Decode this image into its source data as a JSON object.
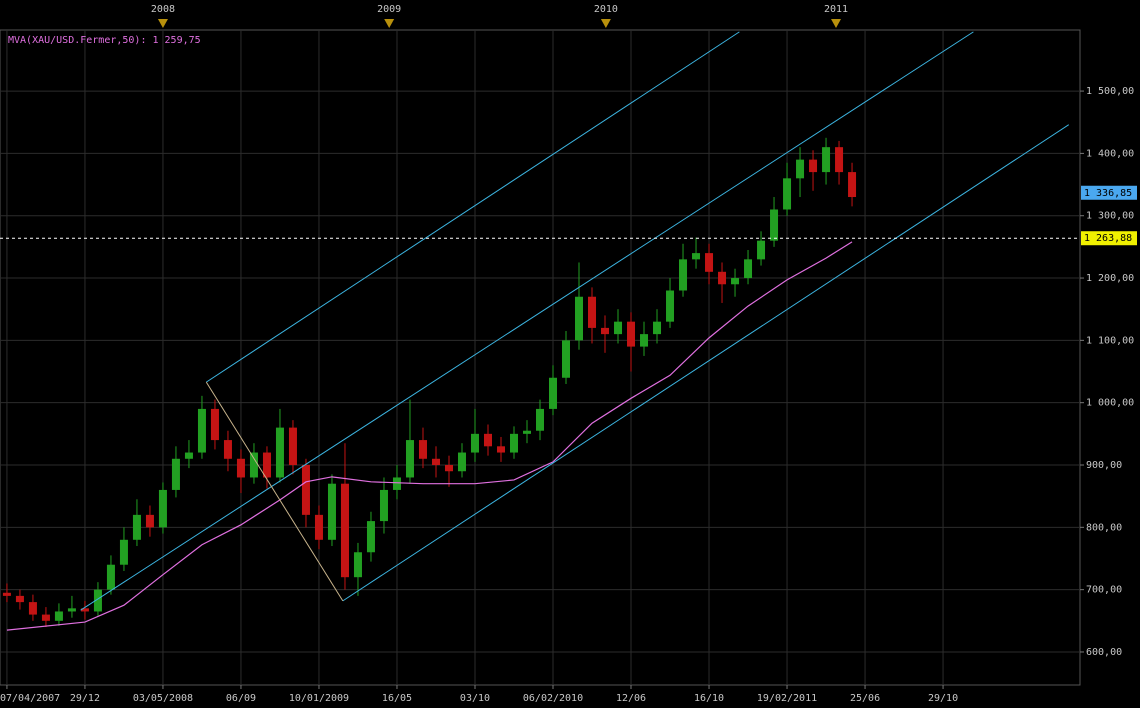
{
  "chart_data": {
    "type": "candlestick",
    "indicator_label": "MVA(XAU/USD.Fermer,50): 1 259,75",
    "x": [
      0,
      3,
      6,
      9,
      12,
      15,
      18,
      21,
      24,
      27,
      30,
      33,
      36,
      39,
      42,
      45,
      48,
      51,
      54,
      57,
      60,
      63,
      66,
      69,
      72,
      75,
      78,
      81,
      84,
      87,
      90,
      93,
      96,
      99,
      102,
      105,
      108,
      111,
      114,
      117,
      120,
      123,
      126,
      129,
      132,
      135,
      138,
      141,
      144,
      147,
      150,
      153,
      156,
      159,
      162,
      165,
      168,
      171,
      174,
      177,
      180,
      183,
      186,
      189,
      192,
      195
    ],
    "open": [
      695,
      690,
      680,
      660,
      650,
      665,
      670,
      665,
      700,
      740,
      780,
      820,
      800,
      860,
      910,
      920,
      990,
      940,
      910,
      880,
      920,
      880,
      960,
      900,
      820,
      780,
      870,
      720,
      760,
      810,
      860,
      880,
      940,
      910,
      900,
      890,
      920,
      950,
      930,
      920,
      950,
      955,
      990,
      1040,
      1100,
      1170,
      1120,
      1110,
      1130,
      1090,
      1110,
      1130,
      1180,
      1230,
      1240,
      1210,
      1190,
      1200,
      1230,
      1260,
      1310,
      1360,
      1390,
      1370,
      1410,
      1370
    ],
    "high": [
      710,
      700,
      692,
      672,
      678,
      690,
      682,
      712,
      755,
      800,
      845,
      835,
      872,
      930,
      940,
      1011,
      1005,
      955,
      925,
      935,
      930,
      990,
      972,
      910,
      835,
      885,
      935,
      775,
      825,
      880,
      900,
      1005,
      960,
      930,
      915,
      935,
      990,
      965,
      945,
      962,
      972,
      1005,
      1060,
      1115,
      1225,
      1185,
      1140,
      1150,
      1145,
      1130,
      1150,
      1200,
      1255,
      1265,
      1255,
      1225,
      1215,
      1245,
      1275,
      1330,
      1385,
      1410,
      1405,
      1425,
      1420,
      1385
    ],
    "low": [
      680,
      668,
      650,
      640,
      642,
      655,
      652,
      658,
      692,
      730,
      770,
      785,
      790,
      848,
      895,
      910,
      925,
      890,
      855,
      870,
      862,
      872,
      885,
      800,
      765,
      770,
      700,
      690,
      745,
      790,
      845,
      870,
      895,
      880,
      865,
      880,
      905,
      915,
      905,
      910,
      935,
      940,
      980,
      1030,
      1085,
      1095,
      1080,
      1095,
      1050,
      1075,
      1095,
      1120,
      1170,
      1215,
      1190,
      1160,
      1170,
      1190,
      1220,
      1250,
      1300,
      1330,
      1340,
      1350,
      1350,
      1315
    ],
    "close": [
      690,
      680,
      660,
      650,
      665,
      670,
      665,
      700,
      740,
      780,
      820,
      800,
      860,
      910,
      920,
      990,
      940,
      910,
      880,
      920,
      880,
      960,
      900,
      820,
      780,
      870,
      720,
      760,
      810,
      860,
      880,
      940,
      910,
      900,
      890,
      920,
      950,
      930,
      920,
      950,
      955,
      990,
      1040,
      1100,
      1170,
      1120,
      1110,
      1130,
      1090,
      1110,
      1130,
      1180,
      1230,
      1240,
      1210,
      1190,
      1200,
      1230,
      1260,
      1310,
      1360,
      1390,
      1370,
      1410,
      1370,
      1330
    ],
    "up_color": "#22a022",
    "down_color": "#c41414",
    "moving_average": {
      "x": [
        0,
        18,
        27,
        36,
        45,
        54,
        63,
        69,
        75,
        84,
        96,
        108,
        117,
        126,
        135,
        144,
        153,
        162,
        171,
        180,
        189,
        195
      ],
      "values": [
        635,
        648,
        675,
        724,
        772,
        804,
        844,
        873,
        881,
        873,
        870,
        870,
        876,
        905,
        967,
        1007,
        1044,
        1104,
        1155,
        1197,
        1232,
        1258
      ],
      "color": "#e070e0"
    },
    "trendlines": [
      {
        "x": [
          46,
          169
        ],
        "y": [
          1033,
          1595
        ],
        "color": "#3cb4e0"
      },
      {
        "x": [
          17,
          223
        ],
        "y": [
          667,
          1595
        ],
        "color": "#3cb4e0"
      },
      {
        "x": [
          77.5,
          245
        ],
        "y": [
          682,
          1446
        ],
        "color": "#3cb4e0"
      },
      {
        "x": [
          46,
          77.5
        ],
        "y": [
          1033,
          682
        ],
        "color": "#c8b48c"
      }
    ],
    "price_markers": [
      {
        "value": 1336.85,
        "label": "1 336,85",
        "color": "#4aa8f0"
      },
      {
        "value": 1263.88,
        "label": "1 263,88",
        "color": "#f0f000",
        "dashed": true
      }
    ],
    "xlim": [
      -1.6,
      247.6
    ],
    "ylim": [
      547,
      1598
    ],
    "xticks": [
      {
        "value": 0,
        "label": "07/04/2007"
      },
      {
        "value": 18,
        "label": "29/12"
      },
      {
        "value": 36,
        "label": "03/05/2008"
      },
      {
        "value": 54,
        "label": "06/09"
      },
      {
        "value": 72,
        "label": "10/01/2009"
      },
      {
        "value": 90,
        "label": "16/05"
      },
      {
        "value": 108,
        "label": "03/10"
      },
      {
        "value": 126,
        "label": "06/02/2010"
      },
      {
        "value": 144,
        "label": "12/06"
      },
      {
        "value": 162,
        "label": "16/10"
      },
      {
        "value": 180,
        "label": "19/02/2011"
      },
      {
        "value": 198,
        "label": "25/06"
      },
      {
        "value": 216,
        "label": "29/10"
      }
    ],
    "year_markers": [
      {
        "value": 36,
        "label": "2008"
      },
      {
        "value": 88.2,
        "label": "2009"
      },
      {
        "value": 138.2,
        "label": "2010"
      },
      {
        "value": 191.3,
        "label": "2011"
      }
    ],
    "yticks": [
      {
        "value": 600,
        "label": "600,00"
      },
      {
        "value": 700,
        "label": "700,00"
      },
      {
        "value": 800,
        "label": "800,00"
      },
      {
        "value": 900,
        "label": "900,00"
      },
      {
        "value": 1000,
        "label": "1 000,00"
      },
      {
        "value": 1100,
        "label": "1 100,00"
      },
      {
        "value": 1200,
        "label": "1 200,00"
      },
      {
        "value": 1300,
        "label": "1 300,00"
      },
      {
        "value": 1400,
        "label": "1 400,00"
      },
      {
        "value": 1500,
        "label": "1 500,00"
      }
    ],
    "grid": true
  }
}
